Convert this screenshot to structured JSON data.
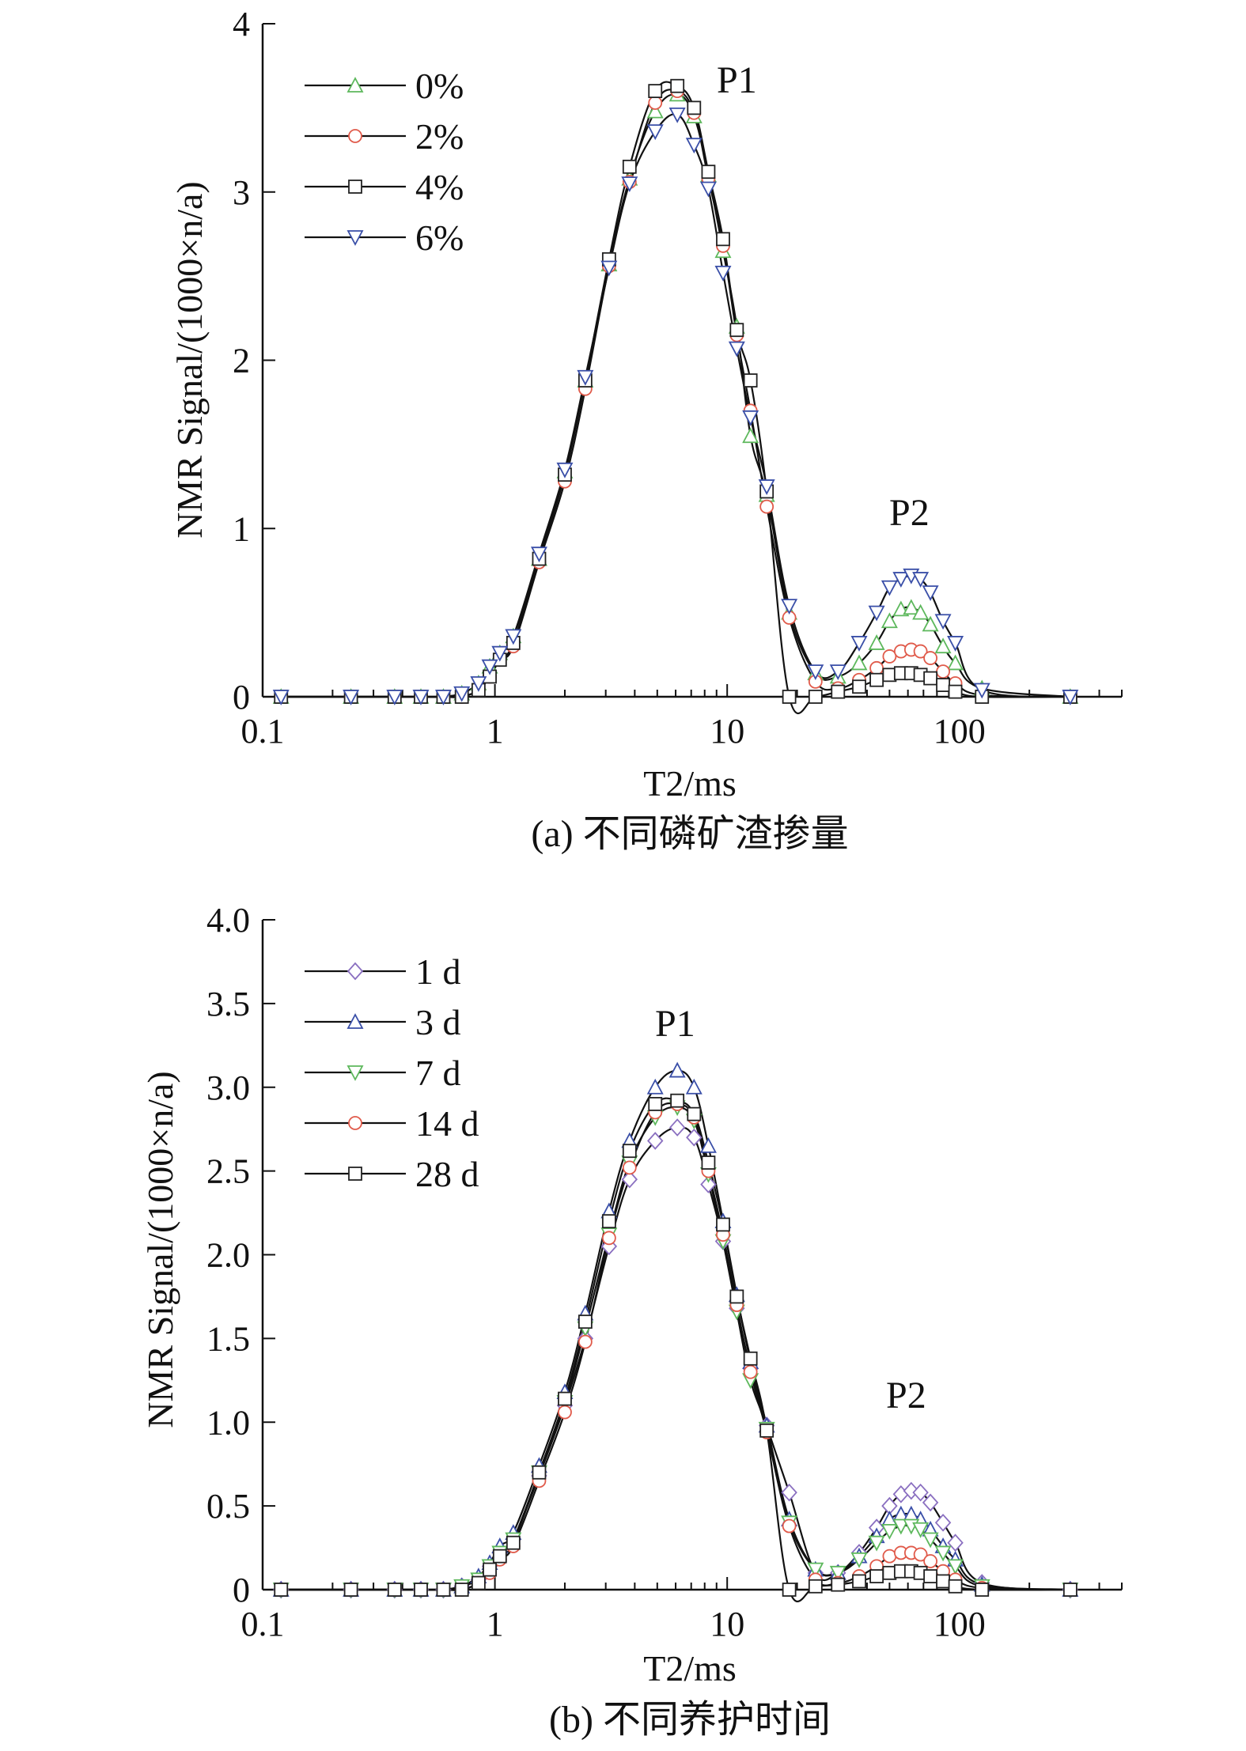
{
  "chart_data": [
    {
      "type": "line",
      "caption": "(a) 不同磷矿渣掺量",
      "xlabel": "T2/ms",
      "ylabel": "NMR Signal/(1000×n/a)",
      "xscale": "log",
      "xlim": [
        0.1,
        500
      ],
      "ylim": [
        0,
        4
      ],
      "xticks": [
        0.1,
        1,
        10,
        100
      ],
      "xtick_labels": [
        "0.1",
        "1",
        "10",
        "100"
      ],
      "yticks": [
        0,
        1,
        2,
        3,
        4
      ],
      "ytick_labels": [
        "0",
        "1",
        "2",
        "3",
        "4"
      ],
      "legend_position": "top-left",
      "grid": false,
      "annotations": [
        {
          "text": "P1",
          "x": 10,
          "y": 3.65
        },
        {
          "text": "P2",
          "x": 70,
          "y": 1.05
        }
      ],
      "x": [
        0.12,
        0.24,
        0.37,
        0.48,
        0.6,
        0.72,
        0.85,
        0.95,
        1.05,
        1.2,
        1.55,
        2.0,
        2.45,
        3.1,
        3.8,
        4.9,
        6.1,
        7.2,
        8.3,
        9.6,
        11.0,
        12.6,
        14.8,
        18.5,
        24.0,
        30.0,
        37.0,
        44.0,
        50.0,
        56.0,
        62.0,
        68.0,
        75.0,
        85.0,
        96.0,
        125.0,
        300.0
      ],
      "series": [
        {
          "name": "0%",
          "color": "#5db85c",
          "marker": "triangle-up",
          "values": [
            0,
            0,
            0,
            0,
            0,
            0.02,
            0.08,
            0.18,
            0.26,
            0.36,
            0.82,
            1.34,
            1.88,
            2.57,
            3.08,
            3.48,
            3.58,
            3.45,
            3.1,
            2.65,
            2.2,
            1.55,
            1.2,
            0.5,
            0.14,
            0.12,
            0.2,
            0.32,
            0.45,
            0.52,
            0.53,
            0.5,
            0.43,
            0.3,
            0.2,
            0.05,
            0
          ]
        },
        {
          "name": "2%",
          "color": "#e05a4a",
          "marker": "circle",
          "values": [
            0,
            0,
            0,
            0,
            0,
            0,
            0.04,
            0.12,
            0.22,
            0.3,
            0.8,
            1.28,
            1.83,
            2.56,
            3.06,
            3.53,
            3.6,
            3.47,
            3.08,
            2.68,
            2.15,
            1.7,
            1.13,
            0.47,
            0.09,
            0.05,
            0.1,
            0.17,
            0.24,
            0.27,
            0.28,
            0.27,
            0.23,
            0.15,
            0.08,
            0.01,
            0
          ]
        },
        {
          "name": "4%",
          "color": "#222222",
          "marker": "square",
          "values": [
            0,
            0,
            0,
            0,
            0,
            0,
            0.04,
            0.12,
            0.22,
            0.32,
            0.82,
            1.32,
            1.88,
            2.6,
            3.15,
            3.6,
            3.63,
            3.5,
            3.12,
            2.72,
            2.18,
            1.88,
            1.22,
            0,
            0,
            0.03,
            0.06,
            0.1,
            0.13,
            0.14,
            0.14,
            0.13,
            0.11,
            0.07,
            0.03,
            0,
            0
          ]
        },
        {
          "name": "6%",
          "color": "#3a4fa8",
          "marker": "triangle-down",
          "values": [
            0,
            0,
            0,
            0,
            0,
            0.02,
            0.08,
            0.18,
            0.26,
            0.36,
            0.85,
            1.35,
            1.9,
            2.55,
            3.05,
            3.36,
            3.46,
            3.28,
            3.02,
            2.52,
            2.07,
            1.66,
            1.25,
            0.54,
            0.15,
            0.15,
            0.32,
            0.5,
            0.65,
            0.7,
            0.72,
            0.7,
            0.62,
            0.45,
            0.32,
            0.04,
            0
          ]
        }
      ]
    },
    {
      "type": "line",
      "caption": "(b) 不同养护时间",
      "xlabel": "T2/ms",
      "ylabel": "NMR Signal/(1000×n/a)",
      "xscale": "log",
      "xlim": [
        0.1,
        500
      ],
      "ylim": [
        0,
        4.0
      ],
      "xticks": [
        0.1,
        1,
        10,
        100
      ],
      "xtick_labels": [
        "0.1",
        "1",
        "10",
        "100"
      ],
      "yticks": [
        0,
        0.5,
        1.0,
        1.5,
        2.0,
        2.5,
        3.0,
        3.5,
        4.0
      ],
      "ytick_labels": [
        "0",
        "0.5",
        "1.0",
        "1.5",
        "2.0",
        "2.5",
        "3.0",
        "3.5",
        "4.0"
      ],
      "legend_position": "top-left",
      "grid": false,
      "annotations": [
        {
          "text": "P1",
          "x": 6,
          "y": 3.28
        },
        {
          "text": "P2",
          "x": 70,
          "y": 1.07
        }
      ],
      "x": [
        0.12,
        0.24,
        0.37,
        0.48,
        0.6,
        0.72,
        0.85,
        0.95,
        1.05,
        1.2,
        1.55,
        2.0,
        2.45,
        3.1,
        3.8,
        4.9,
        6.1,
        7.2,
        8.3,
        9.6,
        11.0,
        12.6,
        14.8,
        18.5,
        24.0,
        30.0,
        37.0,
        44.0,
        50.0,
        56.0,
        62.0,
        68.0,
        75.0,
        85.0,
        96.0,
        125.0,
        300.0
      ],
      "series": [
        {
          "name": "1 d",
          "color": "#8a6fc0",
          "marker": "diamond",
          "values": [
            0,
            0,
            0,
            0,
            0,
            0.02,
            0.06,
            0.14,
            0.22,
            0.3,
            0.68,
            1.1,
            1.5,
            2.05,
            2.45,
            2.68,
            2.76,
            2.7,
            2.42,
            2.08,
            1.68,
            1.32,
            0.98,
            0.58,
            0.1,
            0.1,
            0.22,
            0.37,
            0.5,
            0.57,
            0.59,
            0.58,
            0.52,
            0.4,
            0.28,
            0.04,
            0
          ]
        },
        {
          "name": "3 d",
          "color": "#3a4fa8",
          "marker": "triangle-up",
          "values": [
            0,
            0,
            0,
            0,
            0,
            0.02,
            0.08,
            0.16,
            0.26,
            0.34,
            0.74,
            1.18,
            1.65,
            2.26,
            2.68,
            3.0,
            3.1,
            3.0,
            2.65,
            2.2,
            1.76,
            1.36,
            0.98,
            0.42,
            0.12,
            0.1,
            0.2,
            0.32,
            0.42,
            0.45,
            0.45,
            0.42,
            0.36,
            0.26,
            0.18,
            0.03,
            0
          ]
        },
        {
          "name": "7 d",
          "color": "#5db85c",
          "marker": "triangle-down",
          "values": [
            0,
            0,
            0,
            0,
            0,
            0.02,
            0.06,
            0.14,
            0.22,
            0.3,
            0.7,
            1.12,
            1.56,
            2.12,
            2.55,
            2.82,
            2.88,
            2.8,
            2.48,
            2.08,
            1.66,
            1.25,
            0.96,
            0.4,
            0.12,
            0.1,
            0.18,
            0.28,
            0.35,
            0.38,
            0.38,
            0.36,
            0.3,
            0.22,
            0.14,
            0.02,
            0
          ]
        },
        {
          "name": "14 d",
          "color": "#e05a4a",
          "marker": "circle",
          "values": [
            0,
            0,
            0,
            0,
            0,
            0,
            0.04,
            0.1,
            0.18,
            0.26,
            0.65,
            1.06,
            1.48,
            2.1,
            2.52,
            2.85,
            2.9,
            2.82,
            2.5,
            2.12,
            1.7,
            1.3,
            0.94,
            0.38,
            0.06,
            0.04,
            0.08,
            0.14,
            0.2,
            0.22,
            0.22,
            0.21,
            0.17,
            0.11,
            0.06,
            0.01,
            0
          ]
        },
        {
          "name": "28 d",
          "color": "#222222",
          "marker": "square",
          "values": [
            0,
            0,
            0,
            0,
            0,
            0,
            0.04,
            0.12,
            0.2,
            0.28,
            0.7,
            1.14,
            1.6,
            2.2,
            2.62,
            2.9,
            2.92,
            2.84,
            2.55,
            2.18,
            1.75,
            1.38,
            0.95,
            0,
            0.02,
            0.03,
            0.05,
            0.08,
            0.1,
            0.11,
            0.11,
            0.1,
            0.08,
            0.05,
            0.02,
            0,
            0
          ]
        }
      ]
    }
  ]
}
